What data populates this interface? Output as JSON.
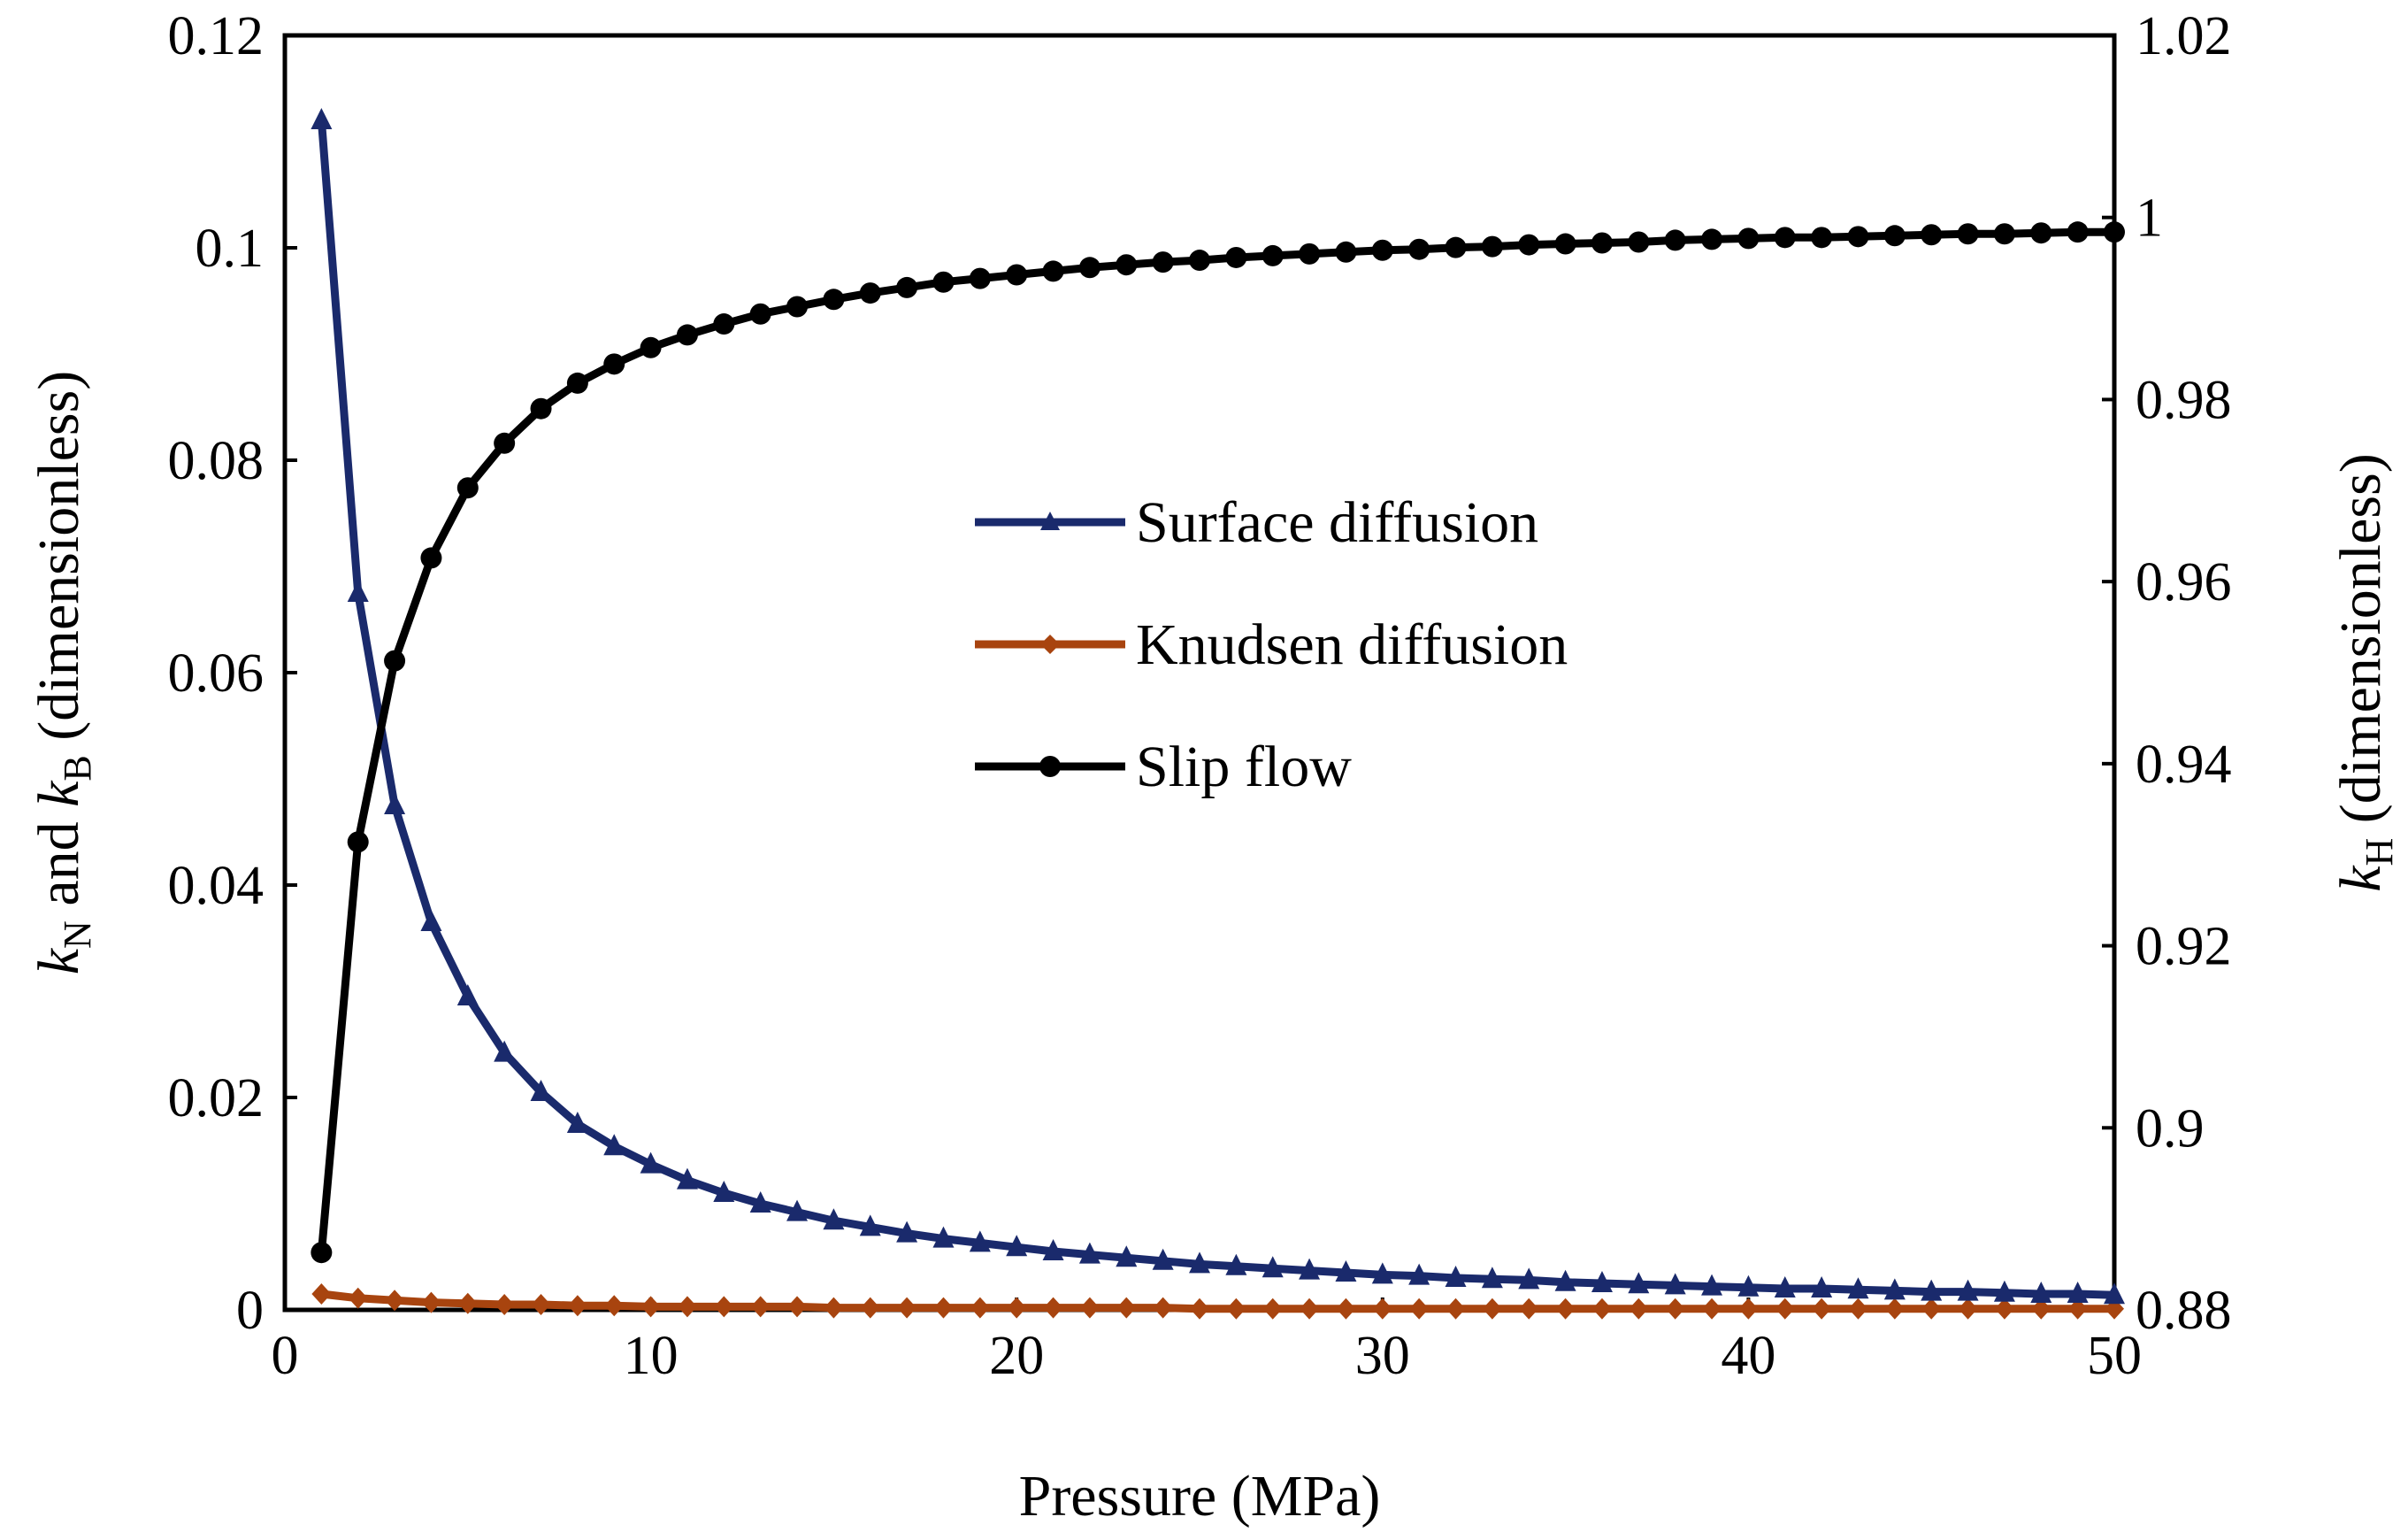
{
  "chart_data": {
    "type": "line",
    "x": [
      1,
      2,
      3,
      4,
      5,
      6,
      7,
      8,
      9,
      10,
      11,
      12,
      13,
      14,
      15,
      16,
      17,
      18,
      19,
      20,
      21,
      22,
      23,
      24,
      25,
      26,
      27,
      28,
      29,
      30,
      31,
      32,
      33,
      34,
      35,
      36,
      37,
      38,
      39,
      40,
      41,
      42,
      43,
      44,
      45,
      46,
      47,
      48,
      49,
      50
    ],
    "xlabel": "Pressure (MPa)",
    "xlim": [
      0,
      50
    ],
    "xticks": [
      "0",
      "10",
      "20",
      "30",
      "40",
      "50"
    ],
    "ylabel_left": {
      "k1": "k",
      "s1": "N",
      "mid": " and ",
      "k2": "k",
      "s2": "B",
      "rest": " (dimensionless)"
    },
    "ylabel_right": {
      "k": "k",
      "s": "H",
      "rest": " (dimensionless)"
    },
    "ylim_left": [
      0,
      0.12
    ],
    "ylim_right": [
      0.88,
      1.02
    ],
    "yticks_left": [
      "0",
      "0.02",
      "0.04",
      "0.06",
      "0.08",
      "0.1",
      "0.12"
    ],
    "yticks_right": [
      "0.88",
      "0.9",
      "0.92",
      "0.94",
      "0.96",
      "0.98",
      "1",
      "1.02"
    ],
    "legend_position": "center",
    "series": [
      {
        "name": "Surface diffusion",
        "axis": "left",
        "marker": "triangle",
        "color": "#1a2a6c",
        "values": [
          0.112,
          0.0675,
          0.0475,
          0.0365,
          0.0295,
          0.0242,
          0.0205,
          0.0175,
          0.0154,
          0.0137,
          0.0122,
          0.011,
          0.01,
          0.0092,
          0.0084,
          0.0078,
          0.0072,
          0.0067,
          0.0063,
          0.0059,
          0.0055,
          0.0052,
          0.0049,
          0.0046,
          0.0043,
          0.0041,
          0.0039,
          0.0037,
          0.0035,
          0.0033,
          0.0032,
          0.003,
          0.0029,
          0.0028,
          0.0026,
          0.0025,
          0.0024,
          0.0023,
          0.0022,
          0.0021,
          0.002,
          0.002,
          0.0019,
          0.0018,
          0.0017,
          0.0017,
          0.0016,
          0.0015,
          0.0015,
          0.0014
        ]
      },
      {
        "name": "Knudsen diffusion",
        "axis": "left",
        "marker": "diamond",
        "color": "#a8440f",
        "values": [
          0.0015,
          0.0011,
          0.0009,
          0.0007,
          0.0006,
          0.0005,
          0.0005,
          0.0004,
          0.0004,
          0.0003,
          0.0003,
          0.0003,
          0.0003,
          0.0003,
          0.0002,
          0.0002,
          0.0002,
          0.0002,
          0.0002,
          0.0002,
          0.0002,
          0.0002,
          0.0002,
          0.0002,
          0.0001,
          0.0001,
          0.0001,
          0.0001,
          0.0001,
          0.0001,
          0.0001,
          0.0001,
          0.0001,
          0.0001,
          0.0001,
          0.0001,
          0.0001,
          0.0001,
          0.0001,
          0.0001,
          0.0001,
          0.0001,
          0.0001,
          0.0001,
          0.0001,
          0.0001,
          0.0001,
          0.0001,
          0.0001,
          0.0001
        ]
      },
      {
        "name": "Slip flow",
        "axis": "right",
        "marker": "circle",
        "color": "#000000",
        "values": [
          0.8863,
          0.9314,
          0.9513,
          0.9626,
          0.9703,
          0.9752,
          0.979,
          0.9818,
          0.9839,
          0.9857,
          0.9871,
          0.9883,
          0.9894,
          0.9902,
          0.991,
          0.9917,
          0.9923,
          0.9929,
          0.9933,
          0.9937,
          0.9941,
          0.9945,
          0.9948,
          0.9951,
          0.9953,
          0.9956,
          0.9958,
          0.996,
          0.9962,
          0.9964,
          0.9965,
          0.9967,
          0.9968,
          0.997,
          0.9971,
          0.9972,
          0.9973,
          0.9975,
          0.9976,
          0.9977,
          0.9978,
          0.9978,
          0.9979,
          0.998,
          0.9981,
          0.9982,
          0.9982,
          0.9983,
          0.9984,
          0.9984
        ]
      }
    ]
  }
}
